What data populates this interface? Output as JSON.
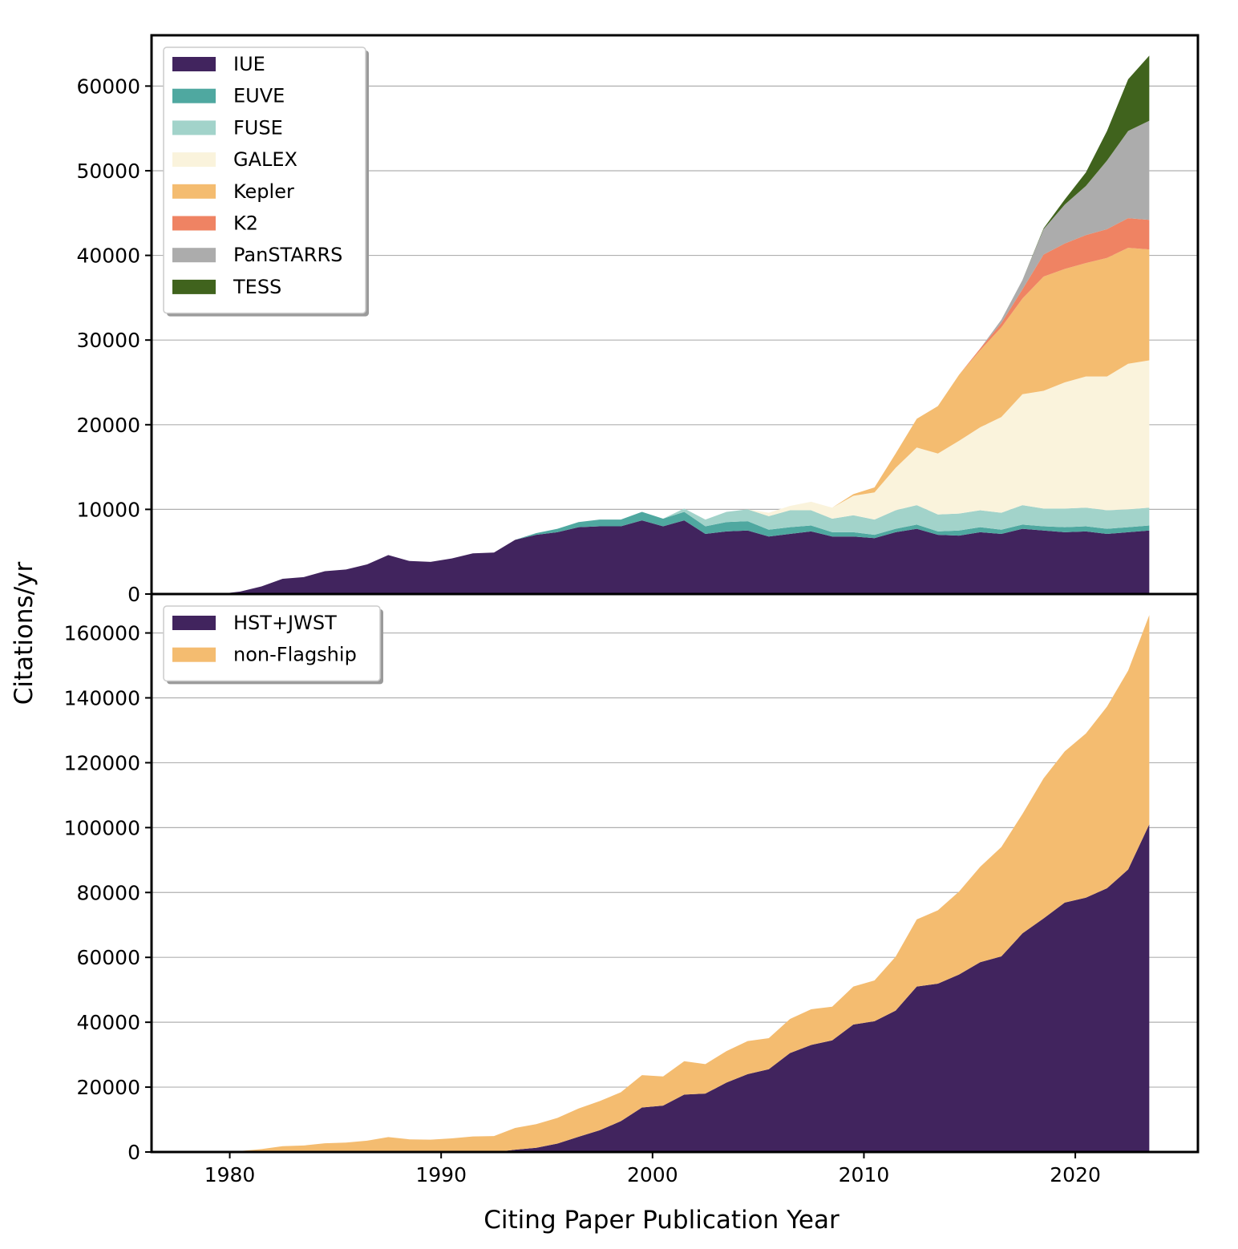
{
  "chart_data": [
    {
      "type": "area",
      "stacked": true,
      "panel": "top",
      "ylabel": "Citations/yr",
      "xlim": [
        1976.3,
        2025.8
      ],
      "ylim": [
        0,
        66000
      ],
      "yticks": [
        0,
        10000,
        20000,
        30000,
        40000,
        50000,
        60000
      ],
      "grid": "horizontal",
      "legend": "top-left",
      "x": [
        1978.5,
        1979.5,
        1980.5,
        1981.5,
        1982.5,
        1983.5,
        1984.5,
        1985.5,
        1986.5,
        1987.5,
        1988.5,
        1989.5,
        1990.5,
        1991.5,
        1992.5,
        1993.5,
        1994.5,
        1995.5,
        1996.5,
        1997.5,
        1998.5,
        1999.5,
        2000.5,
        2001.5,
        2002.5,
        2003.5,
        2004.5,
        2005.5,
        2006.5,
        2007.5,
        2008.5,
        2009.5,
        2010.5,
        2011.5,
        2012.5,
        2013.5,
        2014.5,
        2015.5,
        2016.5,
        2017.5,
        2018.5,
        2019.5,
        2020.5,
        2021.5,
        2022.5,
        2023.5
      ],
      "series": [
        {
          "name": "IUE",
          "color": "#41245e",
          "values": [
            0,
            0,
            300,
            900,
            1800,
            2000,
            2700,
            2900,
            3500,
            4600,
            3900,
            3800,
            4200,
            4800,
            4900,
            6400,
            7000,
            7300,
            7900,
            8000,
            8000,
            8700,
            8000,
            8700,
            7100,
            7400,
            7500,
            6800,
            7100,
            7400,
            6800,
            6800,
            6600,
            7300,
            7700,
            7000,
            6900,
            7300,
            7100,
            7700,
            7500,
            7300,
            7400,
            7100,
            7300,
            7500
          ]
        },
        {
          "name": "EUVE",
          "color": "#4fa8a0",
          "values": [
            0,
            0,
            0,
            0,
            0,
            0,
            0,
            0,
            0,
            0,
            0,
            0,
            0,
            0,
            0,
            0,
            200,
            400,
            600,
            800,
            800,
            1000,
            900,
            1000,
            900,
            1100,
            1100,
            800,
            800,
            700,
            500,
            500,
            400,
            400,
            500,
            400,
            600,
            600,
            500,
            500,
            500,
            600,
            600,
            600,
            600,
            600
          ]
        },
        {
          "name": "FUSE",
          "color": "#a2d3ca",
          "values": [
            0,
            0,
            0,
            0,
            0,
            0,
            0,
            0,
            0,
            0,
            0,
            0,
            0,
            0,
            0,
            0,
            0,
            0,
            0,
            0,
            0,
            0,
            0,
            400,
            800,
            1200,
            1400,
            1600,
            2000,
            1800,
            1600,
            2000,
            1800,
            2200,
            2300,
            2000,
            2000,
            2000,
            2000,
            2300,
            2100,
            2200,
            2200,
            2200,
            2100,
            2100
          ]
        },
        {
          "name": "GALEX",
          "color": "#faf3dc",
          "values": [
            0,
            0,
            0,
            0,
            0,
            0,
            0,
            0,
            0,
            0,
            0,
            0,
            0,
            0,
            0,
            0,
            0,
            0,
            0,
            0,
            0,
            0,
            0,
            0,
            0,
            0,
            0,
            400,
            500,
            1000,
            1300,
            2300,
            3200,
            5000,
            6800,
            7200,
            8600,
            9800,
            11300,
            13100,
            13900,
            14900,
            15500,
            15800,
            17200,
            17400
          ]
        },
        {
          "name": "Kepler",
          "color": "#f4bc70",
          "values": [
            0,
            0,
            0,
            0,
            0,
            0,
            0,
            0,
            0,
            0,
            0,
            0,
            0,
            0,
            0,
            0,
            0,
            0,
            0,
            0,
            0,
            0,
            0,
            0,
            0,
            0,
            0,
            0,
            0,
            0,
            0,
            200,
            600,
            1700,
            3400,
            5600,
            7800,
            9100,
            10600,
            11300,
            13500,
            13400,
            13400,
            14000,
            13700,
            13100
          ]
        },
        {
          "name": "K2",
          "color": "#ef8363",
          "values": [
            0,
            0,
            0,
            0,
            0,
            0,
            0,
            0,
            0,
            0,
            0,
            0,
            0,
            0,
            0,
            0,
            0,
            0,
            0,
            0,
            0,
            0,
            0,
            0,
            0,
            0,
            0,
            0,
            0,
            0,
            0,
            0,
            0,
            0,
            0,
            0,
            0,
            200,
            500,
            1100,
            2600,
            3000,
            3300,
            3400,
            3500,
            3500
          ]
        },
        {
          "name": "PanSTARRS",
          "color": "#acacac",
          "values": [
            0,
            0,
            0,
            0,
            0,
            0,
            0,
            0,
            0,
            0,
            0,
            0,
            0,
            0,
            0,
            0,
            0,
            0,
            0,
            0,
            0,
            0,
            0,
            0,
            0,
            0,
            0,
            0,
            0,
            0,
            0,
            0,
            0,
            0,
            0,
            0,
            0,
            0,
            400,
            1100,
            3000,
            4600,
            5800,
            8100,
            10300,
            11700
          ]
        },
        {
          "name": "TESS",
          "color": "#40631d",
          "values": [
            0,
            0,
            0,
            0,
            0,
            0,
            0,
            0,
            0,
            0,
            0,
            0,
            0,
            0,
            0,
            0,
            0,
            0,
            0,
            0,
            0,
            0,
            0,
            0,
            0,
            0,
            0,
            0,
            0,
            0,
            0,
            0,
            0,
            0,
            0,
            0,
            0,
            0,
            0,
            0,
            100,
            600,
            1600,
            3500,
            6100,
            7700
          ]
        }
      ]
    },
    {
      "type": "area",
      "stacked": true,
      "panel": "bottom",
      "xlabel": "Citing Paper Publication Year",
      "ylabel": "Citations/yr",
      "xlim": [
        1976.3,
        2025.8
      ],
      "ylim": [
        0,
        172000
      ],
      "yticks": [
        0,
        20000,
        40000,
        60000,
        80000,
        100000,
        120000,
        140000,
        160000
      ],
      "xticks": [
        1980,
        1990,
        2000,
        2010,
        2020
      ],
      "grid": "horizontal",
      "legend": "top-left",
      "x": [
        1978.5,
        1979.5,
        1980.5,
        1981.5,
        1982.5,
        1983.5,
        1984.5,
        1985.5,
        1986.5,
        1987.5,
        1988.5,
        1989.5,
        1990.5,
        1991.5,
        1992.5,
        1993.5,
        1994.5,
        1995.5,
        1996.5,
        1997.5,
        1998.5,
        1999.5,
        2000.5,
        2001.5,
        2002.5,
        2003.5,
        2004.5,
        2005.5,
        2006.5,
        2007.5,
        2008.5,
        2009.5,
        2010.5,
        2011.5,
        2012.5,
        2013.5,
        2014.5,
        2015.5,
        2016.5,
        2017.5,
        2018.5,
        2019.5,
        2020.5,
        2021.5,
        2022.5,
        2023.5
      ],
      "series": [
        {
          "name": "HST+JWST",
          "color": "#41245e",
          "values": [
            0,
            0,
            0,
            0,
            0,
            0,
            0,
            0,
            0,
            0,
            0,
            0,
            0,
            0,
            0,
            700,
            1300,
            2600,
            4700,
            6700,
            9500,
            13700,
            14300,
            17700,
            18000,
            21400,
            24000,
            25500,
            30500,
            33000,
            34400,
            39300,
            40300,
            43600,
            51000,
            51900,
            54700,
            58500,
            60300,
            67400,
            72000,
            76900,
            78400,
            81300,
            87100,
            101000
          ]
        },
        {
          "name": "non-Flagship",
          "color": "#f4bc70",
          "values": [
            0,
            0,
            300,
            900,
            1800,
            2000,
            2700,
            2900,
            3500,
            4600,
            3900,
            3800,
            4200,
            4800,
            4900,
            6700,
            7300,
            7900,
            8700,
            9000,
            8900,
            10000,
            9000,
            10300,
            9100,
            9700,
            10200,
            9600,
            10500,
            11000,
            10400,
            11700,
            12600,
            16600,
            20700,
            22600,
            25600,
            29400,
            33700,
            36800,
            43200,
            46600,
            50600,
            56000,
            61300,
            64500
          ]
        }
      ]
    }
  ]
}
